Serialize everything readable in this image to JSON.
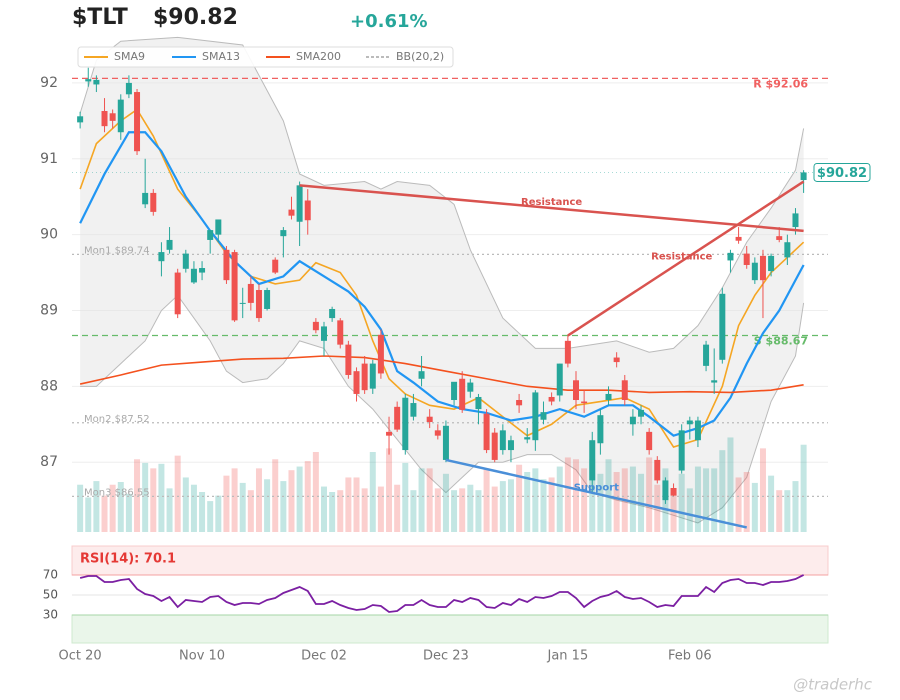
{
  "chart_data": {
    "type": "candlestick",
    "title": "$TLT",
    "price": "$90.82",
    "change": "+0.61%",
    "categories": [
      "Oct 20",
      null,
      null,
      null,
      null,
      null,
      null,
      null,
      null,
      null,
      null,
      null,
      null,
      null,
      null,
      "Nov 10",
      null,
      null,
      null,
      null,
      null,
      null,
      null,
      null,
      null,
      null,
      null,
      null,
      null,
      null,
      "Dec 02",
      null,
      null,
      null,
      null,
      null,
      null,
      null,
      null,
      null,
      null,
      null,
      null,
      null,
      null,
      "Dec 23",
      null,
      null,
      null,
      null,
      null,
      null,
      null,
      null,
      null,
      null,
      null,
      null,
      null,
      null,
      "Jan 15",
      null,
      null,
      null,
      null,
      null,
      null,
      null,
      null,
      null,
      null,
      null,
      null,
      null,
      null,
      "Feb 06",
      null,
      null,
      null,
      null,
      null,
      null,
      null,
      null,
      null,
      null,
      null,
      null,
      null,
      null
    ],
    "open": [
      91.48,
      92.02,
      91.98,
      91.63,
      91.6,
      91.35,
      91.85,
      91.88,
      90.4,
      90.55,
      89.65,
      89.8,
      89.5,
      89.55,
      89.37,
      89.5,
      89.93,
      90.0,
      89.8,
      89.77,
      89.1,
      89.35,
      89.27,
      89.02,
      89.67,
      89.98,
      90.33,
      90.17,
      90.45,
      88.85,
      88.6,
      88.9,
      88.87,
      88.55,
      88.2,
      88.3,
      87.97,
      88.68,
      87.4,
      87.73,
      87.16,
      87.6,
      88.1,
      87.6,
      87.42,
      87.03,
      87.82,
      88.1,
      87.93,
      87.7,
      87.64,
      87.39,
      87.16,
      87.16,
      87.82,
      87.3,
      87.29,
      87.56,
      87.86,
      87.88,
      88.6,
      88.08,
      87.8,
      86.76,
      87.25,
      87.82,
      88.38,
      88.08,
      87.5,
      87.6,
      87.4,
      87.03,
      86.5,
      86.66,
      86.89,
      87.5,
      87.29,
      88.27,
      88.05,
      88.35,
      89.66,
      89.97,
      89.75,
      89.4,
      89.72,
      89.52,
      89.98,
      89.7,
      90.1,
      90.72
    ],
    "high": [
      91.62,
      92.2,
      92.1,
      91.8,
      91.65,
      91.85,
      92.1,
      91.92,
      91.0,
      90.6,
      89.9,
      90.1,
      89.55,
      89.8,
      89.65,
      89.65,
      90.05,
      90.15,
      89.85,
      89.8,
      89.3,
      89.45,
      89.35,
      89.3,
      89.7,
      90.1,
      90.5,
      90.7,
      90.6,
      88.9,
      88.85,
      89.05,
      88.9,
      88.6,
      88.25,
      88.4,
      88.35,
      88.75,
      87.6,
      87.8,
      87.9,
      87.9,
      88.4,
      87.7,
      87.5,
      87.55,
      88.05,
      88.2,
      88.1,
      87.9,
      87.7,
      87.45,
      87.5,
      87.35,
      87.9,
      87.45,
      87.95,
      87.8,
      87.92,
      88.3,
      88.67,
      88.2,
      87.95,
      87.4,
      87.7,
      88.0,
      88.45,
      88.15,
      87.7,
      87.75,
      87.45,
      87.08,
      86.8,
      86.72,
      87.5,
      87.6,
      87.6,
      88.6,
      88.5,
      89.3,
      89.8,
      90.1,
      89.85,
      89.7,
      89.8,
      89.75,
      90.1,
      90.0,
      90.35,
      90.85
    ],
    "low": [
      91.4,
      91.95,
      91.88,
      91.35,
      91.4,
      91.25,
      91.8,
      91.05,
      90.35,
      90.25,
      89.45,
      89.75,
      88.9,
      89.5,
      89.35,
      89.4,
      89.75,
      89.9,
      89.35,
      88.85,
      88.9,
      89.0,
      88.85,
      89.0,
      89.48,
      89.7,
      90.2,
      89.85,
      90.0,
      88.7,
      88.4,
      88.85,
      88.5,
      88.1,
      87.8,
      87.9,
      87.9,
      88.1,
      87.1,
      87.4,
      87.1,
      87.55,
      88.0,
      87.45,
      87.3,
      87.0,
      87.75,
      87.65,
      87.85,
      87.5,
      87.12,
      87.0,
      87.1,
      87.0,
      87.65,
      87.25,
      87.15,
      87.5,
      87.75,
      87.8,
      88.25,
      87.7,
      87.65,
      86.6,
      87.1,
      87.75,
      88.25,
      87.75,
      87.35,
      87.5,
      87.1,
      86.72,
      86.45,
      86.55,
      86.85,
      87.3,
      87.2,
      88.2,
      87.9,
      88.3,
      89.5,
      89.88,
      89.55,
      89.35,
      88.9,
      89.45,
      89.9,
      89.6,
      90.0,
      90.55
    ],
    "close": [
      91.56,
      92.05,
      92.04,
      91.43,
      91.5,
      91.78,
      92.0,
      91.1,
      90.55,
      90.3,
      89.77,
      89.93,
      88.95,
      89.75,
      89.55,
      89.56,
      90.06,
      90.2,
      89.4,
      88.87,
      89.1,
      89.1,
      88.9,
      89.27,
      89.5,
      90.06,
      90.25,
      90.65,
      90.19,
      88.74,
      88.79,
      89.02,
      88.55,
      88.15,
      87.9,
      87.95,
      88.3,
      88.17,
      87.35,
      87.43,
      87.85,
      87.78,
      88.2,
      87.53,
      87.35,
      87.48,
      88.06,
      87.69,
      88.05,
      87.86,
      87.16,
      87.03,
      87.42,
      87.29,
      87.75,
      87.33,
      87.92,
      87.66,
      87.8,
      88.3,
      88.3,
      87.82,
      87.78,
      87.29,
      87.62,
      87.9,
      88.32,
      87.82,
      87.6,
      87.69,
      87.16,
      86.76,
      86.76,
      86.56,
      87.42,
      87.55,
      87.55,
      88.55,
      88.08,
      89.22,
      89.76,
      89.92,
      89.6,
      89.63,
      89.4,
      89.72,
      89.93,
      89.9,
      90.28,
      90.82
    ],
    "volume": [
      52,
      38,
      56,
      40,
      52,
      55,
      42,
      80,
      76,
      70,
      75,
      48,
      84,
      60,
      52,
      44,
      34,
      40,
      62,
      70,
      54,
      46,
      70,
      58,
      80,
      56,
      68,
      72,
      78,
      88,
      50,
      44,
      46,
      60,
      60,
      48,
      88,
      50,
      92,
      52,
      76,
      46,
      70,
      70,
      48,
      64,
      46,
      48,
      52,
      46,
      70,
      50,
      56,
      58,
      74,
      66,
      70,
      58,
      60,
      72,
      82,
      80,
      70,
      80,
      64,
      80,
      66,
      70,
      72,
      64,
      82,
      52,
      70,
      44,
      64,
      48,
      72,
      70,
      70,
      90,
      104,
      60,
      66,
      54,
      92,
      62,
      46,
      46,
      56,
      96
    ],
    "vlim": [
      0,
      110
    ],
    "up_color": "#26a69a",
    "down_color": "#ef5350",
    "ylim": [
      86.08,
      92.5
    ],
    "yticks": [
      87,
      88,
      89,
      90,
      91,
      92
    ],
    "xlim": [
      -1,
      92
    ],
    "grid": true,
    "lines": [
      {
        "name": "SMA9",
        "color": "#f5a623",
        "x": [
          0,
          2,
          5,
          7,
          9,
          12,
          15,
          18,
          21,
          24,
          27,
          29,
          32,
          34,
          36,
          38,
          40,
          43,
          46,
          49,
          52,
          55,
          58,
          61,
          64,
          67,
          70,
          73,
          76,
          79,
          81,
          83,
          85,
          87,
          89
        ],
        "values": [
          90.6,
          91.2,
          91.5,
          91.65,
          91.3,
          90.6,
          90.2,
          89.75,
          89.45,
          89.35,
          89.4,
          89.63,
          89.5,
          89.2,
          88.6,
          88.1,
          87.9,
          87.75,
          87.7,
          87.85,
          87.6,
          87.35,
          87.5,
          87.75,
          87.8,
          87.85,
          87.7,
          87.2,
          87.3,
          88.0,
          88.8,
          89.2,
          89.5,
          89.7,
          89.9
        ]
      },
      {
        "name": "SMA13",
        "color": "#2196f3",
        "x": [
          0,
          3,
          6,
          8,
          10,
          13,
          16,
          19,
          22,
          25,
          27,
          30,
          33,
          35,
          37,
          39,
          41,
          44,
          47,
          50,
          53,
          56,
          59,
          62,
          65,
          68,
          70,
          73,
          76,
          78,
          80,
          82,
          84,
          86,
          88,
          89
        ],
        "values": [
          90.15,
          90.8,
          91.35,
          91.35,
          91.1,
          90.5,
          90.05,
          89.65,
          89.35,
          89.45,
          89.65,
          89.45,
          89.25,
          89.05,
          88.75,
          88.2,
          88.05,
          87.8,
          87.7,
          87.65,
          87.55,
          87.6,
          87.7,
          87.6,
          87.75,
          87.75,
          87.6,
          87.35,
          87.45,
          87.55,
          87.85,
          88.3,
          88.7,
          89.0,
          89.4,
          89.6
        ]
      },
      {
        "name": "SMA200",
        "color": "#f4511e",
        "x": [
          0,
          5,
          10,
          15,
          20,
          25,
          30,
          35,
          40,
          45,
          50,
          55,
          60,
          65,
          70,
          75,
          80,
          85,
          89
        ],
        "values": [
          88.03,
          88.15,
          88.28,
          88.32,
          88.36,
          88.37,
          88.4,
          88.38,
          88.3,
          88.2,
          88.1,
          88.0,
          87.95,
          87.95,
          87.92,
          87.93,
          87.92,
          87.95,
          88.02
        ]
      }
    ],
    "band": {
      "name": "BB(20,2)",
      "color": "#bbbbbb",
      "upper": {
        "x": [
          0,
          2,
          5,
          12,
          20,
          25,
          27,
          30,
          35,
          37,
          39,
          43,
          46,
          48,
          52,
          56,
          60,
          63,
          66,
          70,
          73,
          76,
          79,
          82,
          85,
          88,
          89
        ],
        "values": [
          91.6,
          92.3,
          92.55,
          92.6,
          92.5,
          91.5,
          90.8,
          90.65,
          90.7,
          90.6,
          90.7,
          90.65,
          90.4,
          89.8,
          88.9,
          88.5,
          88.5,
          88.55,
          88.6,
          88.45,
          88.5,
          88.8,
          89.3,
          89.9,
          90.35,
          90.85,
          91.4
        ]
      },
      "lower": {
        "x": [
          0,
          2,
          5,
          8,
          10,
          12,
          14,
          16,
          18,
          20,
          23,
          25,
          27,
          30,
          33,
          36,
          39,
          42,
          45,
          47,
          49,
          52,
          55,
          58,
          61,
          63,
          66,
          70,
          73,
          76,
          79,
          82,
          85,
          88,
          89
        ],
        "values": [
          88.0,
          88.0,
          88.3,
          88.6,
          89.0,
          89.2,
          88.9,
          88.6,
          88.2,
          88.05,
          88.1,
          88.3,
          88.6,
          88.5,
          88.0,
          87.7,
          87.3,
          86.9,
          86.6,
          86.8,
          87.0,
          87.0,
          87.1,
          87.1,
          86.9,
          86.6,
          86.5,
          86.4,
          86.3,
          86.2,
          86.4,
          86.8,
          87.8,
          88.4,
          89.1
        ]
      }
    },
    "levels": [
      {
        "label": "R $92.06",
        "value": 92.06,
        "color": "#f06060",
        "style": "dashed",
        "side": "right"
      },
      {
        "label": "S $88.67",
        "value": 88.67,
        "color": "#66bb6a",
        "style": "dashed",
        "side": "right"
      },
      {
        "label": "Mon1 $89.74",
        "value": 89.74,
        "color": "#bbbbbb",
        "style": "dotted",
        "side": "left"
      },
      {
        "label": "Mon2 $87.52",
        "value": 87.52,
        "color": "#bbbbbb",
        "style": "dotted",
        "side": "left"
      },
      {
        "label": "Mon3 $86.55",
        "value": 86.55,
        "color": "#bbbbbb",
        "style": "dotted",
        "side": "left"
      }
    ],
    "trendlines": [
      {
        "label": "Resistance",
        "color": "#d9534f",
        "x": [
          27,
          89
        ],
        "values": [
          90.65,
          90.05
        ]
      },
      {
        "label": "Resistance",
        "color": "#d9534f",
        "x": [
          60,
          89
        ],
        "values": [
          88.67,
          90.7
        ]
      },
      {
        "label": "Support",
        "color": "#4a8fd8",
        "x": [
          45,
          82
        ],
        "values": [
          87.03,
          86.14
        ]
      }
    ],
    "rsi": {
      "label": "RSI(14): 70.1",
      "color": "#7b1fa2",
      "ylim": [
        2,
        99
      ],
      "yticks": [
        30,
        50,
        70
      ],
      "values": [
        67,
        69,
        69,
        63,
        63,
        65,
        66,
        56,
        51,
        49,
        44,
        48,
        38,
        45,
        44,
        43,
        48,
        49,
        43,
        40,
        42,
        42,
        41,
        45,
        47,
        52,
        55,
        58,
        54,
        41,
        41,
        44,
        40,
        37,
        35,
        36,
        40,
        39,
        33,
        34,
        40,
        40,
        45,
        40,
        38,
        38,
        45,
        43,
        47,
        45,
        38,
        37,
        42,
        40,
        46,
        43,
        48,
        47,
        49,
        53,
        53,
        47,
        38,
        44,
        48,
        50,
        54,
        48,
        46,
        47,
        43,
        38,
        40,
        39,
        49,
        49,
        49,
        58,
        53,
        62,
        65,
        66,
        62,
        62,
        60,
        63,
        63,
        64,
        66,
        70.1
      ]
    },
    "watermark": "@traderhc"
  }
}
